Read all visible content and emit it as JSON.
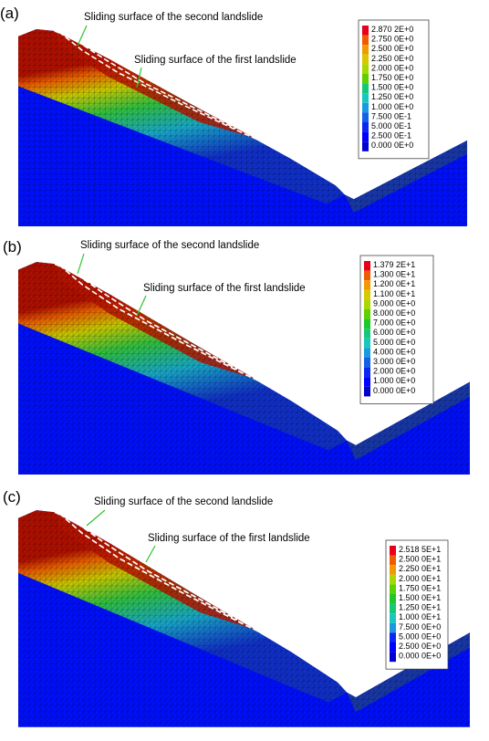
{
  "panels": [
    {
      "label": "(a)",
      "second_annotation": "Sliding surface of the second landslide",
      "first_annotation": "Sliding surface of the first landslide",
      "legend": [
        "2.870 2E+0",
        "2.750 0E+0",
        "2.500 0E+0",
        "2.250 0E+0",
        "2.000 0E+0",
        "1.750 0E+0",
        "1.500 0E+0",
        "1.250 0E+0",
        "1.000 0E+0",
        "7.500 0E-1",
        "5.000 0E-1",
        "2.500 0E-1",
        "0.000 0E+0"
      ]
    },
    {
      "label": "(b)",
      "second_annotation": "Sliding surface of the second landslide",
      "first_annotation": "Sliding surface of the first landslide",
      "legend": [
        "1.379 2E+1",
        "1.300 0E+1",
        "1.200 0E+1",
        "1.100 0E+1",
        "9.000 0E+0",
        "8.000 0E+0",
        "7.000 0E+0",
        "6.000 0E+0",
        "5.000 0E+0",
        "4.000 0E+0",
        "3.000 0E+0",
        "2.000 0E+0",
        "1.000 0E+0",
        "0.000 0E+0"
      ]
    },
    {
      "label": "(c)",
      "second_annotation": "Sliding surface of the second landslide",
      "first_annotation": "Sliding surface of the first landslide",
      "legend": [
        "2.518 5E+1",
        "2.500 0E+1",
        "2.250 0E+1",
        "2.000 0E+1",
        "1.750 0E+1",
        "1.500 0E+1",
        "1.250 0E+1",
        "1.000 0E+1",
        "7.500 0E+0",
        "5.000 0E+0",
        "2.500 0E+0",
        "0.000 0E+0"
      ]
    }
  ]
}
